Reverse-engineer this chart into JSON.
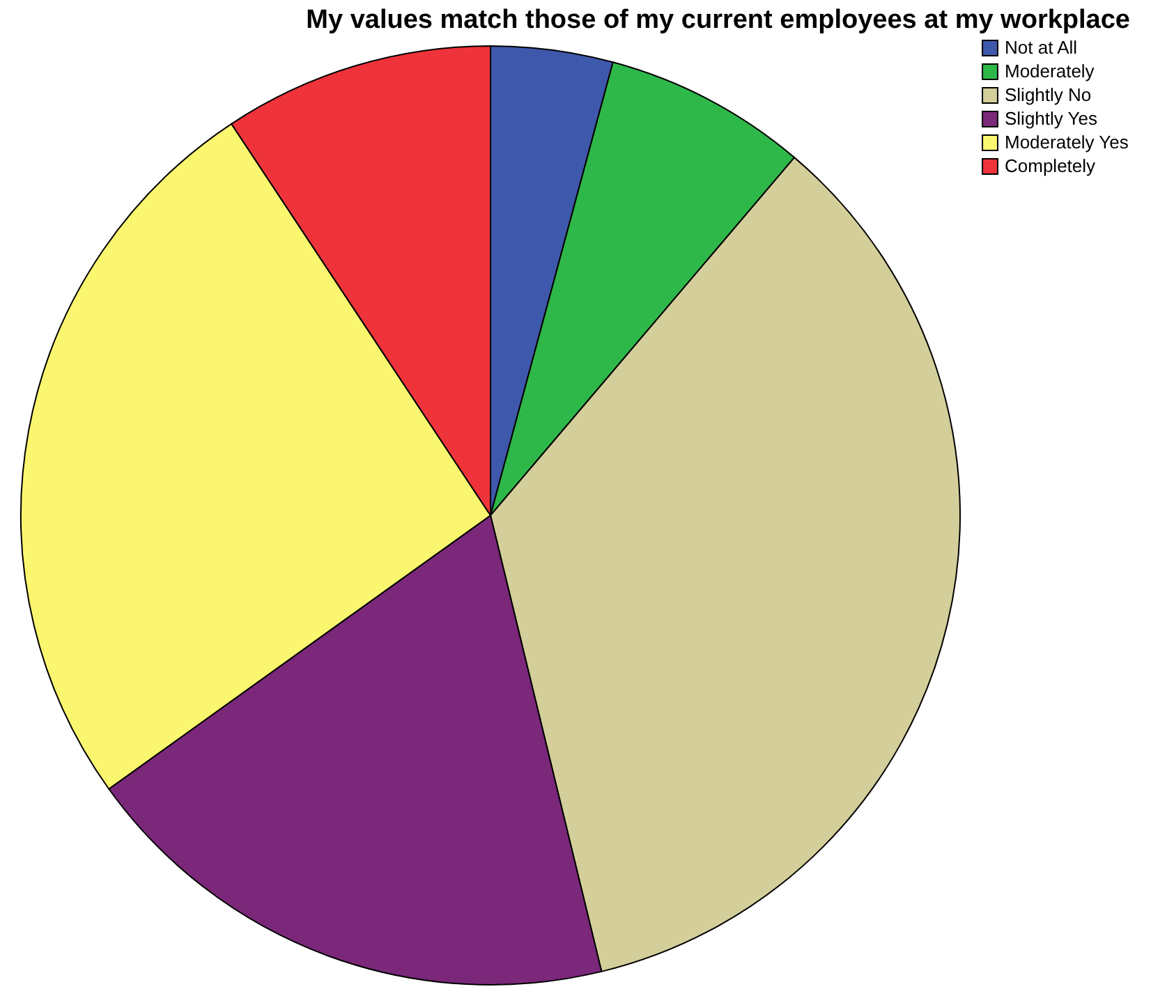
{
  "chart_data": {
    "type": "pie",
    "title": "My values match those of my current employees at my workplace",
    "categories": [
      "Not at All",
      "Moderately",
      "Slightly No",
      "Slightly Yes",
      "Moderately Yes",
      "Completely"
    ],
    "values": [
      4.2,
      7.0,
      35.0,
      18.9,
      25.6,
      9.3
    ],
    "colors": [
      "#3e58ac",
      "#2fb84a",
      "#d4ce9a",
      "#7b287a",
      "#fbf66f",
      "#ef333b"
    ],
    "legend": "top right"
  }
}
